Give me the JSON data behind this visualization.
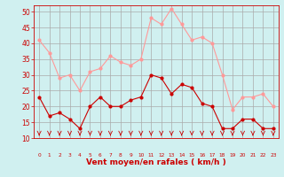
{
  "hours": [
    0,
    1,
    2,
    3,
    4,
    5,
    6,
    7,
    8,
    9,
    10,
    11,
    12,
    13,
    14,
    15,
    16,
    17,
    18,
    19,
    20,
    21,
    22,
    23
  ],
  "wind_avg": [
    23,
    17,
    18,
    16,
    13,
    20,
    23,
    20,
    20,
    22,
    23,
    30,
    29,
    24,
    27,
    26,
    21,
    20,
    13,
    13,
    16,
    16,
    13,
    13
  ],
  "wind_gust": [
    41,
    37,
    29,
    30,
    25,
    31,
    32,
    36,
    34,
    33,
    35,
    48,
    46,
    51,
    46,
    41,
    42,
    40,
    30,
    19,
    23,
    23,
    24,
    20
  ],
  "avg_color": "#cc0000",
  "gust_color": "#ff9999",
  "bg_color": "#d0f0f0",
  "grid_color": "#aaaaaa",
  "xlabel": "Vent moyen/en rafales ( km/h )",
  "xlabel_color": "#cc0000",
  "tick_color": "#cc0000",
  "ylim": [
    10,
    52
  ],
  "yticks": [
    10,
    15,
    20,
    25,
    30,
    35,
    40,
    45,
    50
  ],
  "arrow_color": "#cc0000"
}
